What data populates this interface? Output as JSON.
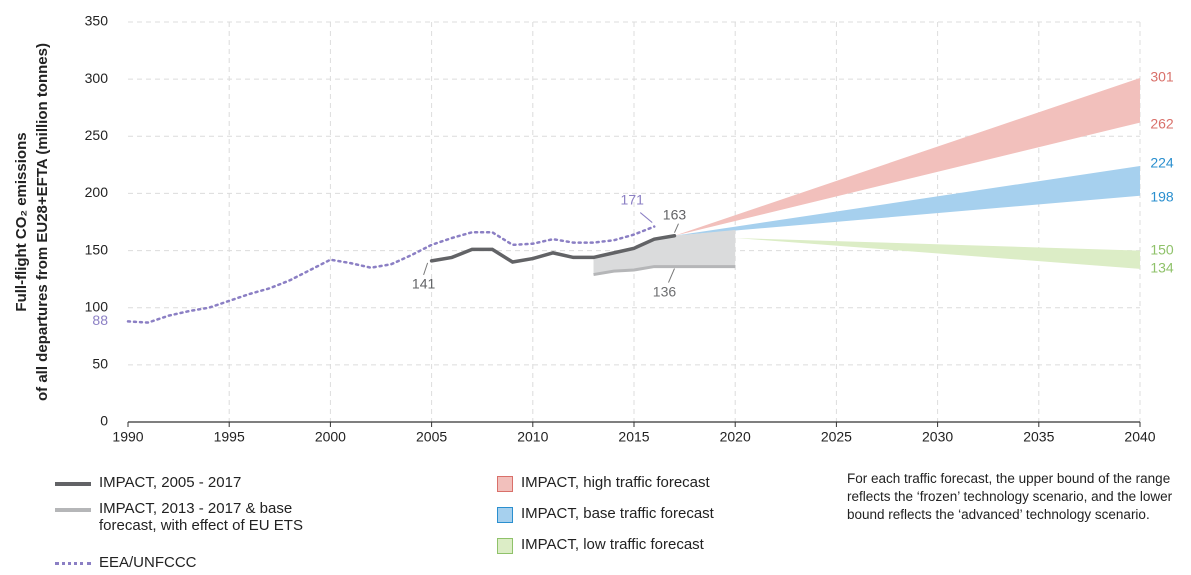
{
  "chart_data": {
    "type": "line",
    "y_label": [
      "Full-flight CO₂ emissions",
      "of all departures from EU28+EFTA (million tonnes)"
    ],
    "xlim": [
      1990,
      2040
    ],
    "xticks": [
      1990,
      1995,
      2000,
      2005,
      2010,
      2015,
      2020,
      2025,
      2030,
      2035,
      2040
    ],
    "ylim": [
      0,
      350
    ],
    "yticks": [
      0,
      50,
      100,
      150,
      200,
      250,
      300,
      350
    ],
    "grid": true,
    "series": [
      {
        "name": "IMPACT, high traffic forecast",
        "kind": "band",
        "color": "#f2c0bc",
        "label_color": "#d9706a",
        "x": [
          2017,
          2040
        ],
        "lower": [
          163,
          262
        ],
        "upper": [
          163,
          301
        ]
      },
      {
        "name": "IMPACT, base traffic forecast",
        "kind": "band",
        "color": "#a6d0ee",
        "label_color": "#2a8fcf",
        "x": [
          2017,
          2040
        ],
        "lower": [
          163,
          198
        ],
        "upper": [
          163,
          224
        ]
      },
      {
        "name": "IMPACT, low traffic forecast",
        "kind": "band",
        "color": "#dcedc6",
        "label_color": "#8fc26a",
        "x": [
          2020,
          2040
        ],
        "lower": [
          161,
          134
        ],
        "upper": [
          161,
          150
        ]
      },
      {
        "name": "IMPACT, 2013 - 2017 & base forecast, with effect of EU ETS",
        "kind": "band",
        "color": "#dadbdc",
        "line_color": "#b5b6b8",
        "label_color": "#6d6e70",
        "x": [
          2013,
          2014,
          2015,
          2016,
          2017,
          2020
        ],
        "lower": [
          129,
          132,
          133,
          136,
          136,
          136
        ],
        "upper": [
          144,
          148,
          152,
          160,
          163,
          168
        ]
      },
      {
        "name": "IMPACT, 2005 - 2017",
        "kind": "line",
        "color": "#626366",
        "label_color": "#626366",
        "x": [
          2005,
          2006,
          2007,
          2008,
          2009,
          2010,
          2011,
          2012,
          2013,
          2014,
          2015,
          2016,
          2017
        ],
        "values": [
          141,
          144,
          151,
          151,
          140,
          143,
          148,
          144,
          144,
          148,
          152,
          160,
          163
        ]
      },
      {
        "name": "EEA/UNFCCC",
        "kind": "dotted",
        "color": "#8b7fc4",
        "label_color": "#8b7fc4",
        "x": [
          1990,
          1991,
          1992,
          1993,
          1994,
          1995,
          1996,
          1997,
          1998,
          1999,
          2000,
          2001,
          2002,
          2003,
          2004,
          2005,
          2006,
          2007,
          2008,
          2009,
          2010,
          2011,
          2012,
          2013,
          2014,
          2015,
          2016
        ],
        "values": [
          88,
          87,
          93,
          97,
          100,
          106,
          112,
          117,
          124,
          133,
          142,
          139,
          135,
          138,
          146,
          155,
          161,
          166,
          166,
          155,
          156,
          160,
          157,
          157,
          159,
          164,
          171
        ]
      }
    ],
    "note": "For each traffic forecast, the upper bound of the range reflects the ‘frozen’ technology scenario, and the lower bound reflects the ‘advanced’ technology scenario."
  }
}
